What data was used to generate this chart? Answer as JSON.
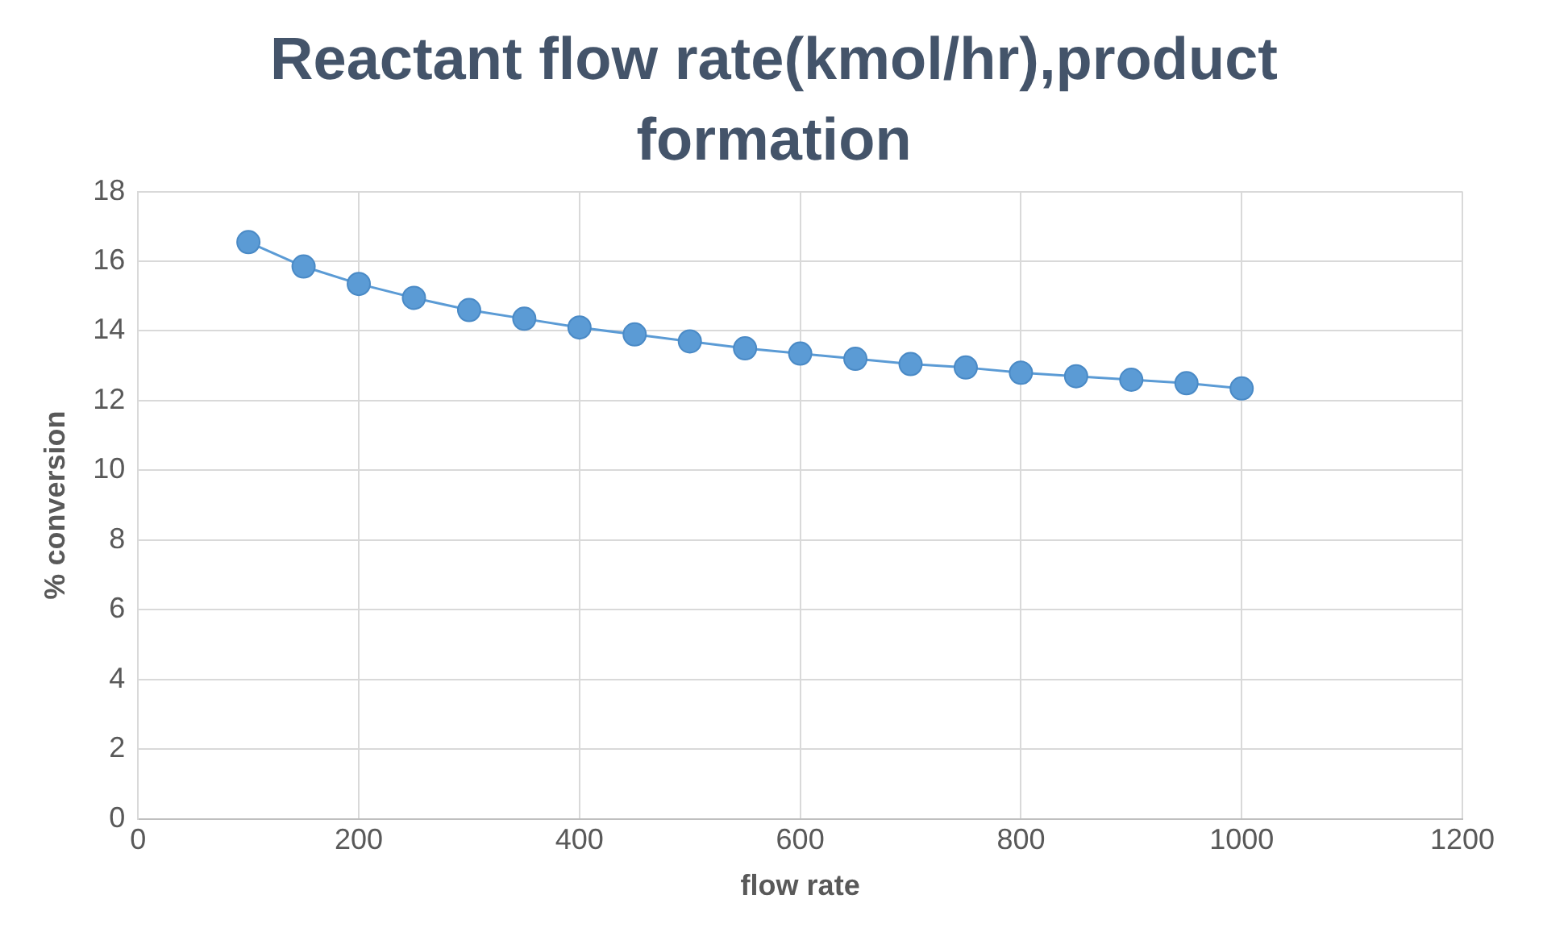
{
  "chart_data": {
    "type": "line",
    "title": "Reactant flow rate(kmol/hr),product formation",
    "xlabel": "flow rate",
    "ylabel": "% conversion",
    "x": [
      100,
      150,
      200,
      250,
      300,
      350,
      400,
      450,
      500,
      550,
      600,
      650,
      700,
      750,
      800,
      850,
      900,
      950,
      1000
    ],
    "series": [
      {
        "color": "#5b9bd5",
        "values": [
          16.55,
          15.85,
          15.35,
          14.95,
          14.6,
          14.35,
          14.1,
          13.9,
          13.7,
          13.5,
          13.35,
          13.2,
          13.05,
          12.95,
          12.8,
          12.7,
          12.6,
          12.5,
          12.35
        ]
      }
    ],
    "xlim": [
      0,
      1200
    ],
    "xticks": [
      0,
      200,
      400,
      600,
      800,
      1000,
      1200
    ],
    "ylim": [
      0,
      18
    ],
    "yticks": [
      0,
      2,
      4,
      6,
      8,
      10,
      12,
      14,
      16,
      18
    ],
    "grid": true,
    "marker": "circle",
    "line_style": "solid"
  }
}
